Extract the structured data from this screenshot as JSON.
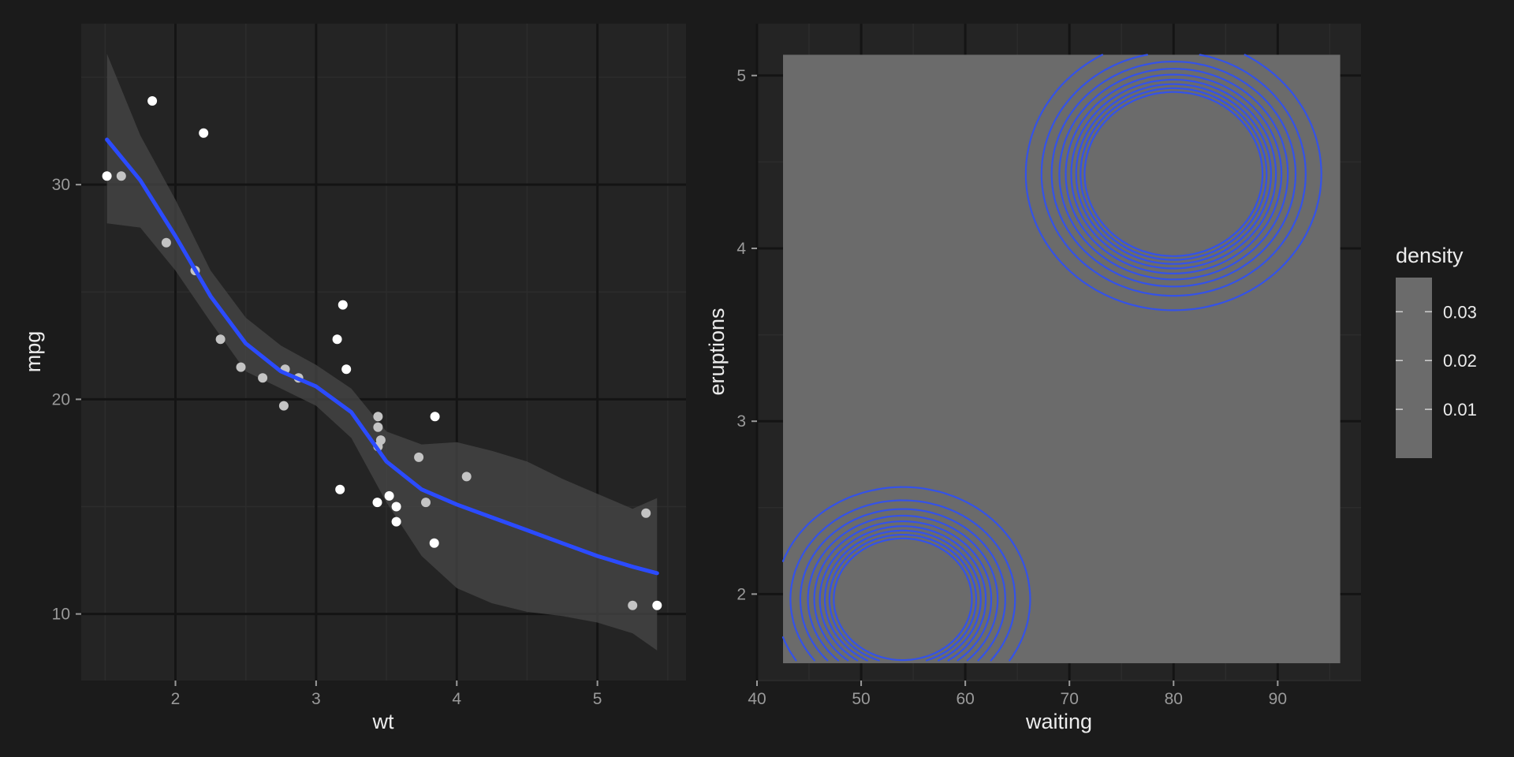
{
  "colors": {
    "figure_bg": "#1b1b1b",
    "panel_bg": "#242424",
    "grid_major": "#141414",
    "grid_minor": "#2c2c2c",
    "tick_text": "#9a9a9a",
    "label_text": "#ececec",
    "point_white": "#ffffff",
    "point_grey": "#c4c4c4",
    "smooth_line": "#2b4bff",
    "ribbon": "#474747",
    "contour": "#3452e8",
    "density_fill": "#6b6b6b"
  },
  "chart_data": [
    {
      "type": "scatter",
      "xlabel": "wt",
      "ylabel": "mpg",
      "xlim": [
        1.33,
        5.63
      ],
      "ylim": [
        6.9,
        37.5
      ],
      "x_ticks": [
        2,
        3,
        4,
        5
      ],
      "y_ticks": [
        10,
        20,
        30
      ],
      "x_tick_labels": [
        "2",
        "3",
        "4",
        "5"
      ],
      "y_tick_labels": [
        "10",
        "20",
        "30"
      ],
      "points": [
        {
          "x": 2.62,
          "y": 21.0,
          "tone": "grey"
        },
        {
          "x": 2.875,
          "y": 21.0,
          "tone": "grey"
        },
        {
          "x": 2.32,
          "y": 22.8,
          "tone": "grey"
        },
        {
          "x": 3.215,
          "y": 21.4,
          "tone": "white"
        },
        {
          "x": 3.44,
          "y": 18.7,
          "tone": "grey"
        },
        {
          "x": 3.46,
          "y": 18.1,
          "tone": "grey"
        },
        {
          "x": 3.57,
          "y": 14.3,
          "tone": "white"
        },
        {
          "x": 3.19,
          "y": 24.4,
          "tone": "white"
        },
        {
          "x": 3.15,
          "y": 22.8,
          "tone": "white"
        },
        {
          "x": 3.44,
          "y": 19.2,
          "tone": "grey"
        },
        {
          "x": 3.44,
          "y": 17.8,
          "tone": "grey"
        },
        {
          "x": 4.07,
          "y": 16.4,
          "tone": "grey"
        },
        {
          "x": 3.73,
          "y": 17.3,
          "tone": "grey"
        },
        {
          "x": 3.78,
          "y": 15.2,
          "tone": "grey"
        },
        {
          "x": 5.25,
          "y": 10.4,
          "tone": "grey"
        },
        {
          "x": 5.424,
          "y": 10.4,
          "tone": "white"
        },
        {
          "x": 5.345,
          "y": 14.7,
          "tone": "grey"
        },
        {
          "x": 2.2,
          "y": 32.4,
          "tone": "white"
        },
        {
          "x": 1.615,
          "y": 30.4,
          "tone": "grey"
        },
        {
          "x": 1.835,
          "y": 33.9,
          "tone": "white"
        },
        {
          "x": 2.465,
          "y": 21.5,
          "tone": "grey"
        },
        {
          "x": 3.52,
          "y": 15.5,
          "tone": "white"
        },
        {
          "x": 3.435,
          "y": 15.2,
          "tone": "white"
        },
        {
          "x": 3.84,
          "y": 13.3,
          "tone": "white"
        },
        {
          "x": 3.845,
          "y": 19.2,
          "tone": "white"
        },
        {
          "x": 1.935,
          "y": 27.3,
          "tone": "grey"
        },
        {
          "x": 2.14,
          "y": 26.0,
          "tone": "grey"
        },
        {
          "x": 1.513,
          "y": 30.4,
          "tone": "white"
        },
        {
          "x": 3.17,
          "y": 15.8,
          "tone": "white"
        },
        {
          "x": 2.77,
          "y": 19.7,
          "tone": "grey"
        },
        {
          "x": 3.57,
          "y": 15.0,
          "tone": "white"
        },
        {
          "x": 2.78,
          "y": 21.4,
          "tone": "grey"
        }
      ],
      "smooth": {
        "method": "loess",
        "x": [
          1.513,
          1.75,
          2.0,
          2.25,
          2.5,
          2.75,
          3.0,
          3.25,
          3.5,
          3.75,
          4.0,
          4.25,
          4.5,
          4.75,
          5.0,
          5.25,
          5.424
        ],
        "y": [
          32.1,
          30.2,
          27.6,
          24.8,
          22.6,
          21.3,
          20.6,
          19.4,
          17.1,
          15.8,
          15.1,
          14.5,
          13.9,
          13.3,
          12.7,
          12.2,
          11.9
        ],
        "lower": [
          28.2,
          28.0,
          26.0,
          23.6,
          21.3,
          20.5,
          19.7,
          18.2,
          15.2,
          12.7,
          11.2,
          10.5,
          10.1,
          9.9,
          9.6,
          9.1,
          8.3
        ],
        "upper": [
          36.1,
          32.3,
          29.3,
          26.0,
          23.8,
          22.5,
          21.6,
          20.5,
          18.5,
          17.9,
          18.0,
          17.6,
          17.1,
          16.3,
          15.6,
          14.9,
          15.4
        ]
      }
    },
    {
      "type": "contour",
      "xlabel": "waiting",
      "ylabel": "eruptions",
      "xlim": [
        40,
        98
      ],
      "ylim": [
        1.5,
        5.3
      ],
      "x_ticks": [
        40,
        50,
        60,
        70,
        80,
        90
      ],
      "y_ticks": [
        2,
        3,
        4,
        5
      ],
      "x_tick_labels": [
        "40",
        "50",
        "60",
        "70",
        "80",
        "90"
      ],
      "y_tick_labels": [
        "2",
        "3",
        "4",
        "5"
      ],
      "density_extent": {
        "x": [
          42.5,
          96
        ],
        "y": [
          1.6,
          5.12
        ]
      },
      "legend": {
        "title": "density",
        "position": "right",
        "breaks": [
          0.01,
          0.02,
          0.03
        ],
        "labels": [
          "0.01",
          "0.02",
          "0.03"
        ],
        "range": [
          0.0,
          0.037
        ]
      },
      "modes": [
        {
          "x": 80,
          "y": 4.43,
          "sx": 5.4,
          "sy": 0.3,
          "weight": 0.64
        },
        {
          "x": 54,
          "y": 1.97,
          "sx": 4.9,
          "sy": 0.26,
          "weight": 0.36
        }
      ],
      "contour_levels": [
        0.002,
        0.004,
        0.006,
        0.008,
        0.01,
        0.012,
        0.014,
        0.016,
        0.018
      ]
    }
  ]
}
